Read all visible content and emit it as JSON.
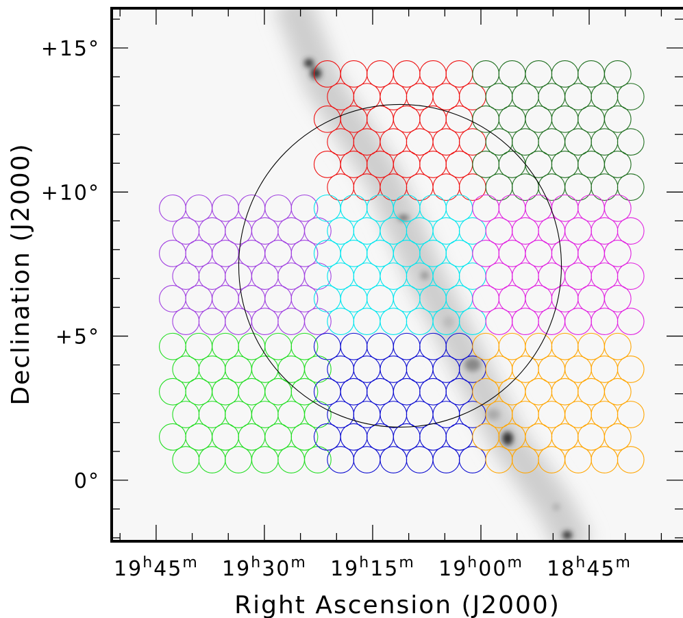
{
  "chart_data": {
    "type": "sky_map",
    "xlabel": "Right Ascension (J2000)",
    "ylabel": "Declination (J2000)",
    "xlim": [
      297.79,
      278.0
    ],
    "ylim": [
      -2.12,
      16.38
    ],
    "xticks": [
      {
        "value": 296.25,
        "label": "19h45m"
      },
      {
        "value": 292.5,
        "label": "19h30m"
      },
      {
        "value": 288.75,
        "label": "19h15m"
      },
      {
        "value": 285,
        "label": "19h00m"
      },
      {
        "value": 281.25,
        "label": "18h45m"
      }
    ],
    "xminorticks": [
      297.5,
      295,
      293.75,
      291.25,
      290,
      287.5,
      286.25,
      283.75,
      282.5,
      280,
      278.75
    ],
    "yticks": [
      {
        "value": 0,
        "label": "0°"
      },
      {
        "value": 5,
        "label": "+5°"
      },
      {
        "value": 10,
        "label": "+10°"
      },
      {
        "value": 15,
        "label": "+15°"
      }
    ],
    "yminorticks": [
      -2,
      -1,
      1,
      2,
      3,
      4,
      6,
      7,
      8,
      9,
      11,
      12,
      13,
      14,
      16
    ],
    "radius": 0.46,
    "region": {
      "ra": 287.8,
      "dec": 7.44,
      "radius": 5.6,
      "color": "#000000"
    },
    "fields": [
      {
        "color": "#ee1111",
        "dec": [
          14.1,
          13.31,
          12.53,
          11.74,
          10.96,
          10.17
        ],
        "ra": [
          [
            290.32,
            289.4,
            288.49,
            287.57,
            286.66,
            285.75
          ],
          [
            289.86,
            288.95,
            288.03,
            287.12,
            286.2,
            285.29
          ],
          [
            290.32,
            289.4,
            288.49,
            287.57,
            286.66,
            285.75
          ],
          [
            289.86,
            288.95,
            288.03,
            287.12,
            286.2,
            285.29
          ],
          [
            290.32,
            289.4,
            288.49,
            287.57,
            286.66,
            285.75
          ],
          [
            289.86,
            288.95,
            288.03,
            287.12,
            286.2,
            285.29
          ]
        ]
      },
      {
        "color": "#1e6e1e",
        "dec": [
          14.1,
          13.31,
          12.53,
          11.74,
          10.96,
          10.17
        ],
        "ra": [
          [
            284.83,
            283.92,
            283.0,
            282.09,
            281.18,
            280.26
          ],
          [
            284.37,
            283.46,
            282.55,
            281.63,
            280.72,
            279.81
          ],
          [
            284.83,
            283.92,
            283.0,
            282.09,
            281.18,
            280.26
          ],
          [
            284.37,
            283.46,
            282.55,
            281.63,
            280.72,
            279.81
          ],
          [
            284.83,
            283.92,
            283.0,
            282.09,
            281.18,
            280.26
          ],
          [
            284.37,
            283.46,
            282.55,
            281.63,
            280.72,
            279.81
          ]
        ]
      },
      {
        "color": "#a040e0",
        "dec": [
          9.44,
          8.65,
          7.87,
          7.08,
          6.3,
          5.51
        ],
        "ra": [
          [
            295.68,
            294.77,
            293.85,
            292.94,
            292.02,
            291.11
          ],
          [
            295.22,
            294.31,
            293.4,
            292.48,
            291.57,
            290.65
          ],
          [
            295.68,
            294.77,
            293.85,
            292.94,
            292.02,
            291.11
          ],
          [
            295.22,
            294.31,
            293.4,
            292.48,
            291.57,
            290.65
          ],
          [
            295.68,
            294.77,
            293.85,
            292.94,
            292.02,
            291.11
          ],
          [
            295.22,
            294.31,
            293.4,
            292.48,
            291.57,
            290.65
          ]
        ]
      },
      {
        "color": "#00e5ee",
        "dec": [
          9.44,
          8.65,
          7.87,
          7.08,
          6.3,
          5.51
        ],
        "ra": [
          [
            290.32,
            289.4,
            288.49,
            287.57,
            286.66,
            285.75
          ],
          [
            289.86,
            288.95,
            288.03,
            287.12,
            286.2,
            285.29
          ],
          [
            290.32,
            289.4,
            288.49,
            287.57,
            286.66,
            285.75
          ],
          [
            289.86,
            288.95,
            288.03,
            287.12,
            286.2,
            285.29
          ],
          [
            290.32,
            289.4,
            288.49,
            287.57,
            286.66,
            285.75
          ],
          [
            289.86,
            288.95,
            288.03,
            287.12,
            286.2,
            285.29
          ]
        ]
      },
      {
        "color": "#e020e0",
        "dec": [
          9.44,
          8.65,
          7.87,
          7.08,
          6.3,
          5.51
        ],
        "ra": [
          [
            284.83,
            283.92,
            283.0,
            282.09,
            281.18,
            280.26
          ],
          [
            284.37,
            283.46,
            282.55,
            281.63,
            280.72,
            279.81
          ],
          [
            284.83,
            283.92,
            283.0,
            282.09,
            281.18,
            280.26
          ],
          [
            284.37,
            283.46,
            282.55,
            281.63,
            280.72,
            279.81
          ],
          [
            284.83,
            283.92,
            283.0,
            282.09,
            281.18,
            280.26
          ],
          [
            284.37,
            283.46,
            282.55,
            281.63,
            280.72,
            279.81
          ]
        ]
      },
      {
        "color": "#22dd22",
        "dec": [
          4.64,
          3.85,
          3.07,
          2.28,
          1.5,
          0.71
        ],
        "ra": [
          [
            295.68,
            294.77,
            293.85,
            292.94,
            292.02,
            291.11
          ],
          [
            295.22,
            294.31,
            293.4,
            292.48,
            291.57,
            290.65
          ],
          [
            295.68,
            294.77,
            293.85,
            292.94,
            292.02,
            291.11
          ],
          [
            295.22,
            294.31,
            293.4,
            292.48,
            291.57,
            290.65
          ],
          [
            295.68,
            294.77,
            293.85,
            292.94,
            292.02,
            291.11
          ],
          [
            295.22,
            294.31,
            293.4,
            292.48,
            291.57,
            290.65
          ]
        ]
      },
      {
        "color": "#0a0ad0",
        "dec": [
          4.64,
          3.85,
          3.07,
          2.28,
          1.5,
          0.71
        ],
        "ra": [
          [
            290.32,
            289.4,
            288.49,
            287.57,
            286.66,
            285.75
          ],
          [
            289.86,
            288.95,
            288.03,
            287.12,
            286.2,
            285.29
          ],
          [
            290.32,
            289.4,
            288.49,
            287.57,
            286.66,
            285.75
          ],
          [
            289.86,
            288.95,
            288.03,
            287.12,
            286.2,
            285.29
          ],
          [
            290.32,
            289.4,
            288.49,
            287.57,
            286.66,
            285.75
          ],
          [
            289.86,
            288.95,
            288.03,
            287.12,
            286.2,
            285.29
          ]
        ]
      },
      {
        "color": "#ffa500",
        "dec": [
          4.64,
          3.85,
          3.07,
          2.28,
          1.5,
          0.71
        ],
        "ra": [
          [
            284.83,
            283.92,
            283.0,
            282.09,
            281.18,
            280.26
          ],
          [
            284.37,
            283.46,
            282.55,
            281.63,
            280.72,
            279.81
          ],
          [
            284.83,
            283.92,
            283.0,
            282.09,
            281.18,
            280.26
          ],
          [
            284.37,
            283.46,
            282.55,
            281.63,
            280.72,
            279.81
          ],
          [
            284.83,
            283.92,
            283.0,
            282.09,
            281.18,
            280.26
          ],
          [
            284.37,
            283.46,
            282.55,
            281.63,
            280.72,
            279.81
          ]
        ]
      }
    ]
  }
}
